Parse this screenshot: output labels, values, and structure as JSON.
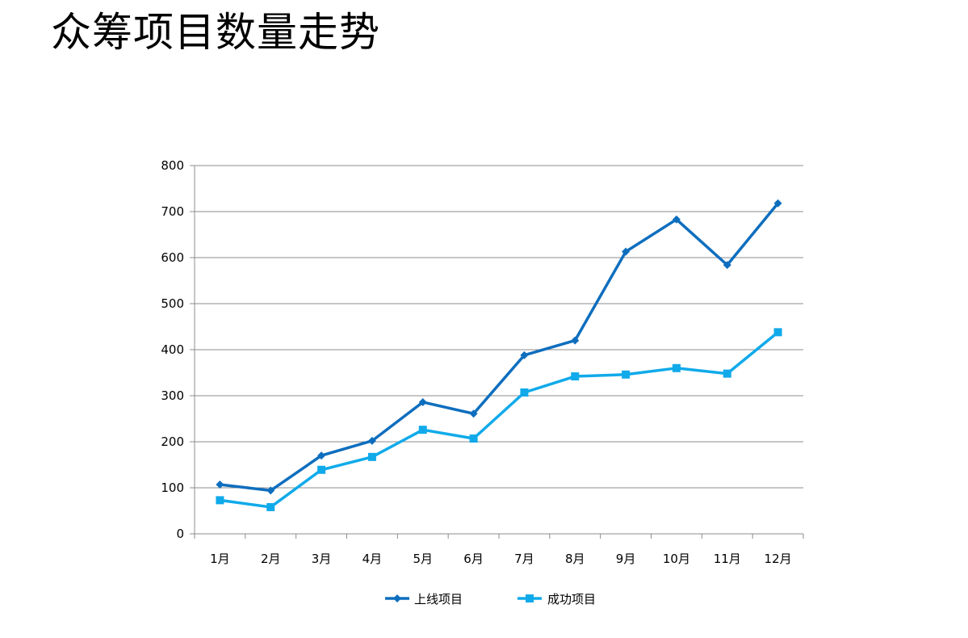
{
  "title": "众筹项目数量走势",
  "colors": {
    "series_1": "#0E6EBE",
    "series_2": "#10AAEA",
    "grid": "#8C8C8C",
    "axis": "#8C8C8C"
  },
  "chart_data": {
    "type": "line",
    "categories": [
      "1月",
      "2月",
      "3月",
      "4月",
      "5月",
      "6月",
      "7月",
      "8月",
      "9月",
      "10月",
      "11月",
      "12月"
    ],
    "series": [
      {
        "name": "上线项目",
        "marker": "diamond",
        "values": [
          107,
          94,
          170,
          202,
          286,
          261,
          388,
          420,
          613,
          683,
          584,
          718
        ]
      },
      {
        "name": "成功项目",
        "marker": "square",
        "values": [
          73,
          58,
          139,
          167,
          226,
          207,
          307,
          342,
          346,
          360,
          348,
          438
        ]
      }
    ],
    "yticks": [
      "0",
      "100",
      "200",
      "300",
      "400",
      "500",
      "600",
      "700",
      "800"
    ],
    "ylim": [
      0,
      800
    ],
    "grid": true,
    "legend": "bottom"
  }
}
